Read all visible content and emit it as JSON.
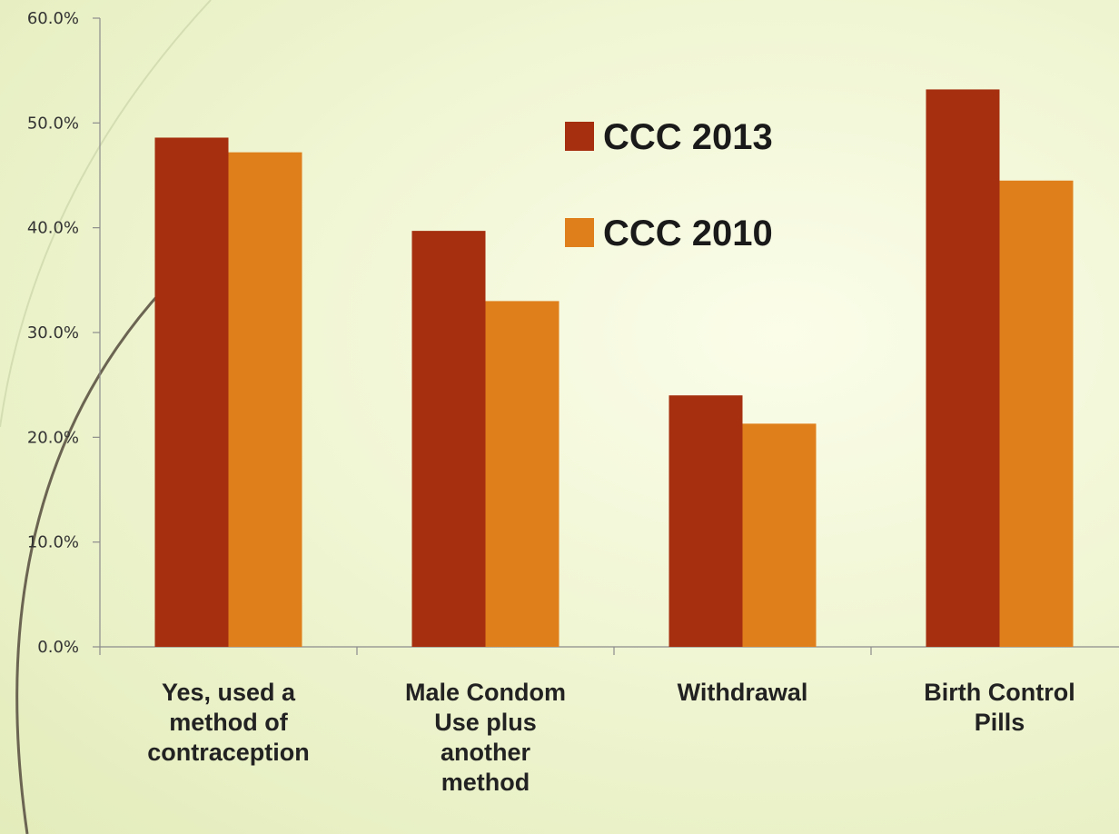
{
  "chart_data": {
    "type": "bar",
    "categories": [
      [
        "Yes, used a",
        "method of",
        "contraception"
      ],
      [
        "Male Condom",
        "Use plus",
        "another",
        "method"
      ],
      [
        "Withdrawal"
      ],
      [
        "Birth Control",
        "Pills"
      ]
    ],
    "series": [
      {
        "name": "CCC 2013",
        "color": "#a52f0f",
        "values": [
          48.6,
          39.7,
          24.0,
          53.2
        ]
      },
      {
        "name": "CCC 2010",
        "color": "#df7f1c",
        "values": [
          47.2,
          33.0,
          21.3,
          44.5
        ]
      }
    ],
    "ylim": [
      0,
      60
    ],
    "yticks": [
      "0.0%",
      "10.0%",
      "20.0%",
      "30.0%",
      "40.0%",
      "50.0%",
      "60.0%"
    ],
    "legend_position": "top-center",
    "grid": false
  }
}
